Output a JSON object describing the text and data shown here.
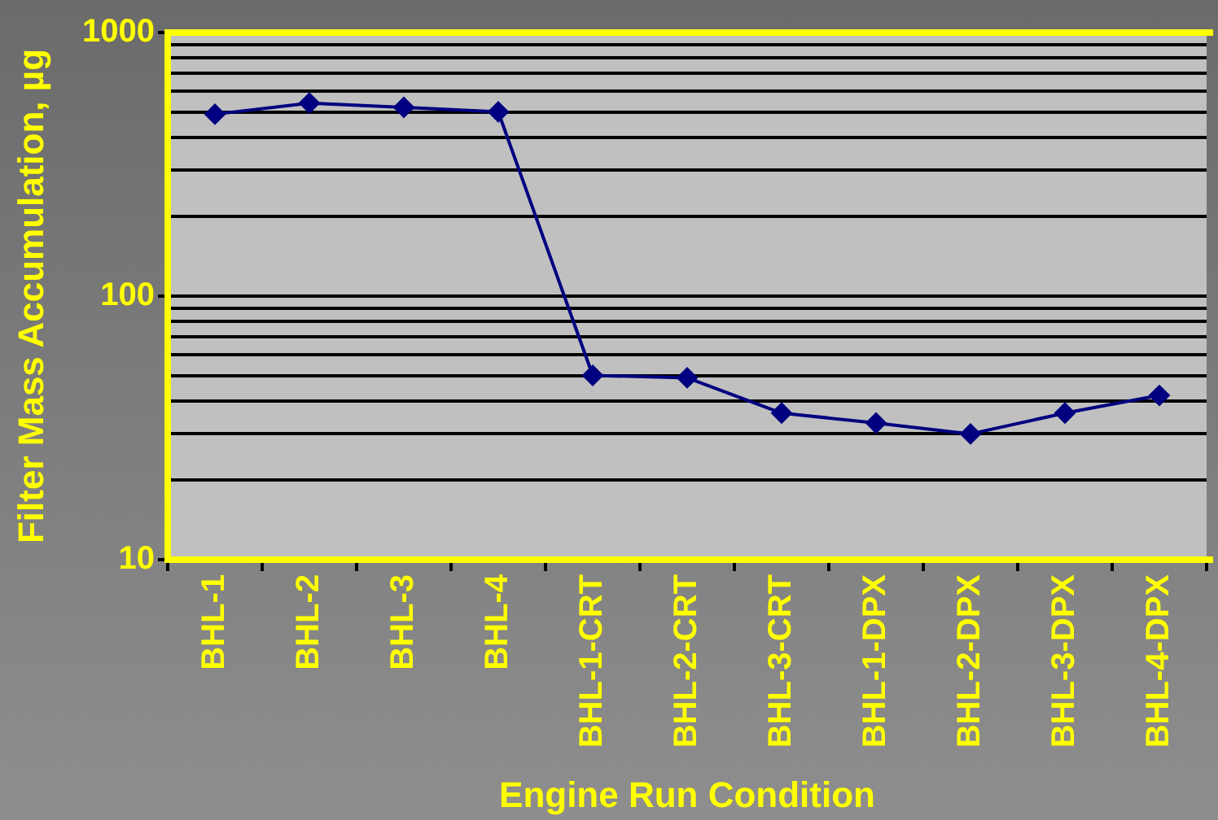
{
  "chart_data": {
    "type": "line",
    "xlabel": "Engine Run Condition",
    "ylabel": "Filter Mass Accumulation, µg",
    "categories": [
      "BHL-1",
      "BHL-2",
      "BHL-3",
      "BHL-4",
      "BHL-1-CRT",
      "BHL-2-CRT",
      "BHL-3-CRT",
      "BHL-1-DPX",
      "BHL-2-DPX",
      "BHL-3-DPX",
      "BHL-4-DPX"
    ],
    "series": [
      {
        "color": "#000080",
        "values": [
          490,
          540,
          520,
          500,
          50,
          49,
          36,
          33,
          30,
          36,
          42
        ]
      }
    ],
    "ylim": [
      10,
      1000
    ],
    "yticks": [
      10,
      {
        "value": 20,
        "label": null
      },
      {
        "value": 30,
        "label": null
      },
      {
        "value": 40,
        "label": null
      },
      {
        "value": 50,
        "label": null
      },
      {
        "value": 60,
        "label": null
      },
      {
        "value": 70,
        "label": null
      },
      {
        "value": 80,
        "label": null
      },
      {
        "value": 90,
        "label": null
      },
      100,
      {
        "value": 200,
        "label": null
      },
      {
        "value": 300,
        "label": null
      },
      {
        "value": 400,
        "label": null
      },
      {
        "value": 500,
        "label": null
      },
      {
        "value": 600,
        "label": null
      },
      {
        "value": 700,
        "label": null
      },
      {
        "value": 800,
        "label": null
      },
      {
        "value": 900,
        "label": null
      },
      1000
    ],
    "log": true,
    "grid": "y",
    "marker": "diamond",
    "line_style": "solid"
  }
}
